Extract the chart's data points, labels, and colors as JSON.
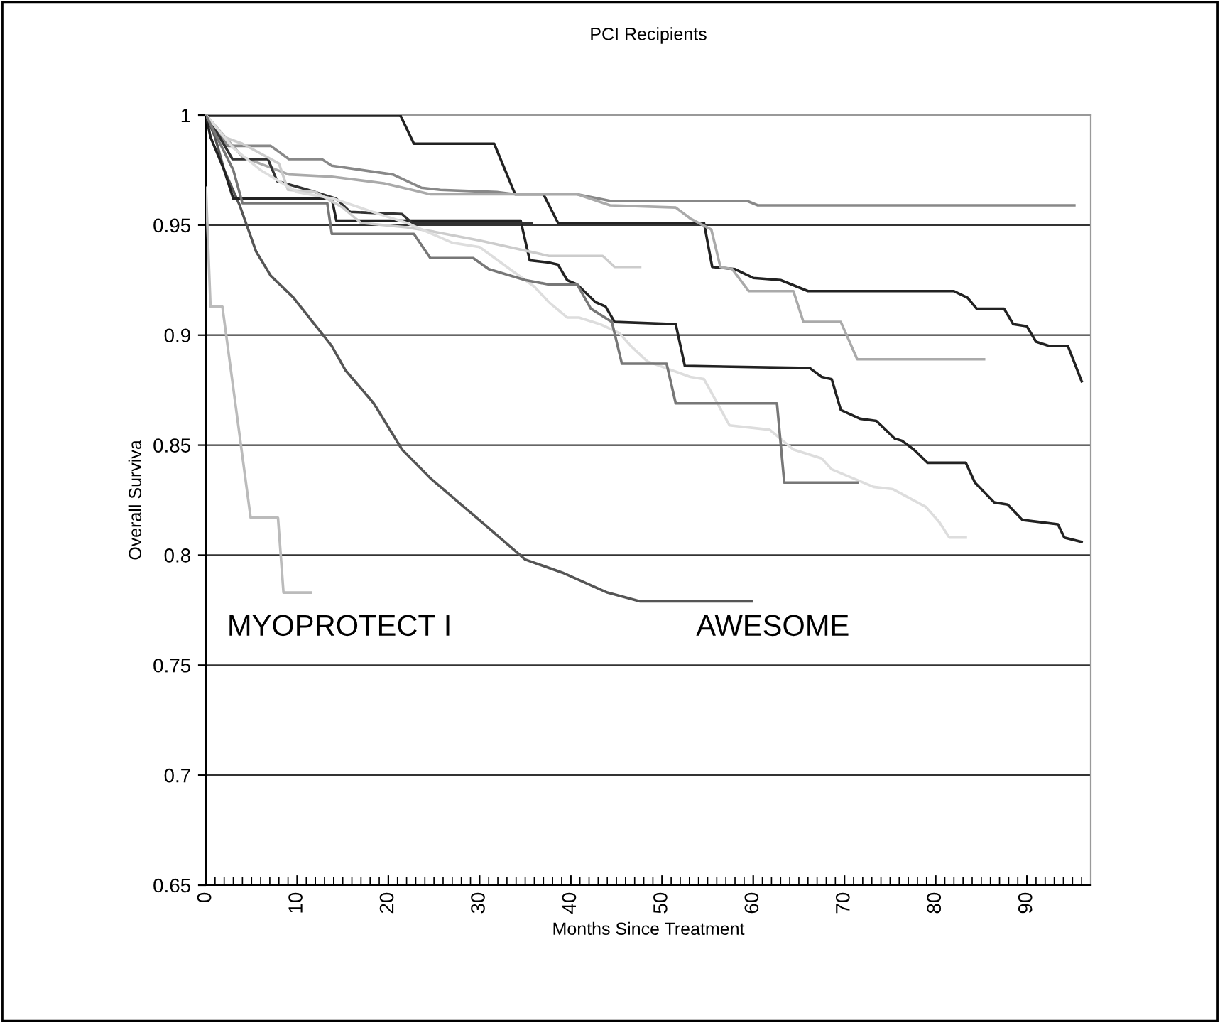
{
  "chart_data": {
    "type": "line",
    "title": "PCI Recipients",
    "xlabel": "Months Since Treatment",
    "ylabel": "Overall Surviva",
    "xlim": [
      0,
      97
    ],
    "xticks": [
      0,
      10,
      20,
      30,
      40,
      50,
      60,
      70,
      80,
      90
    ],
    "ylim": [
      0.65,
      1
    ],
    "yticks": [
      0.65,
      0.7,
      0.75,
      0.8,
      0.85,
      0.9,
      0.95,
      1
    ],
    "grid": "y",
    "marker": "none",
    "line_style": "solid",
    "annotations": [
      "MYOPROTECT I",
      "AWESOME"
    ],
    "series": [
      {
        "color": "#bbbbbb",
        "x": [
          0,
          0.5,
          1.8,
          4.9,
          7.9,
          8.5,
          11.5
        ],
        "values": [
          0.967,
          0.913,
          0.913,
          0.817,
          0.817,
          0.783,
          0.783
        ]
      },
      {
        "color": "#555555",
        "x": [
          0,
          1,
          2,
          3.7,
          5.5,
          7.1,
          9.6,
          11.7,
          13.8,
          15.3,
          18.4,
          21.5,
          24.6,
          27.7,
          30.8,
          35.0,
          39.1,
          44,
          47.6,
          59.8
        ],
        "values": [
          1,
          0.99,
          0.975,
          0.959,
          0.938,
          0.927,
          0.917,
          0.906,
          0.895,
          0.884,
          0.869,
          0.848,
          0.835,
          0.824,
          0.813,
          0.798,
          0.792,
          0.783,
          0.779,
          0.779
        ]
      },
      {
        "color": "#222222",
        "x": [
          0,
          21.3,
          22.8,
          31.6,
          33.9,
          37,
          38.6,
          54.6,
          55.5,
          58,
          60,
          63,
          66,
          82,
          83.5,
          84.5,
          87.5,
          88.5,
          90,
          91,
          92.5,
          94.5,
          96
        ],
        "values": [
          1,
          1,
          0.987,
          0.987,
          0.964,
          0.964,
          0.951,
          0.951,
          0.931,
          0.93,
          0.926,
          0.925,
          0.92,
          0.92,
          0.917,
          0.912,
          0.912,
          0.905,
          0.904,
          0.897,
          0.895,
          0.895,
          0.879
        ]
      },
      {
        "color": "#888888",
        "x": [
          0,
          2.4,
          7.1,
          9.1,
          12.7,
          13.8,
          20.5,
          23.6,
          25.7,
          31.9,
          33.9,
          40.7,
          44.3,
          59.3,
          60.5,
          95.2
        ],
        "values": [
          1,
          0.986,
          0.986,
          0.98,
          0.98,
          0.977,
          0.973,
          0.967,
          0.966,
          0.965,
          0.964,
          0.964,
          0.961,
          0.961,
          0.959,
          0.959
        ]
      },
      {
        "color": "#aaaaaa",
        "x": [
          0,
          4.0,
          9.1,
          13.8,
          19.5,
          22.6,
          24.6,
          31.9,
          40.7,
          44.3,
          51.5,
          53.1,
          55.4,
          56.4,
          57.7,
          59.5,
          64.4,
          65.5,
          69.6,
          71.4,
          85.3
        ],
        "values": [
          1,
          0.981,
          0.973,
          0.972,
          0.969,
          0.966,
          0.964,
          0.964,
          0.964,
          0.959,
          0.958,
          0.953,
          0.948,
          0.931,
          0.93,
          0.92,
          0.92,
          0.906,
          0.906,
          0.889,
          0.889
        ]
      },
      {
        "color": "#222222",
        "x": [
          0,
          0.5,
          2,
          3,
          13.8,
          14.3,
          34.5,
          35.5,
          37.6,
          38.6,
          39.6,
          40.7,
          42.7,
          43.8,
          44.8,
          51.5,
          52.5,
          66.2,
          67.5,
          68.6,
          69.6,
          71.7,
          73.5,
          75.5,
          76.3,
          77.6,
          79.1,
          83.3,
          84.3,
          86.4,
          87.9,
          89.5,
          93.4,
          94.1,
          96
        ],
        "values": [
          1,
          0.99,
          0.975,
          0.962,
          0.962,
          0.952,
          0.952,
          0.934,
          0.933,
          0.932,
          0.925,
          0.923,
          0.915,
          0.913,
          0.906,
          0.905,
          0.886,
          0.885,
          0.881,
          0.88,
          0.866,
          0.862,
          0.861,
          0.853,
          0.852,
          0.848,
          0.842,
          0.842,
          0.833,
          0.824,
          0.823,
          0.816,
          0.814,
          0.808,
          0.806
        ]
      },
      {
        "color": "#333333",
        "x": [
          0,
          1.5,
          2.9,
          6.8,
          7.8,
          11.2,
          14.3,
          15.8,
          21.5,
          22.6,
          35.7
        ],
        "values": [
          1,
          0.99,
          0.98,
          0.98,
          0.97,
          0.966,
          0.962,
          0.956,
          0.955,
          0.951,
          0.951
        ]
      },
      {
        "color": "#cccccc",
        "x": [
          0,
          2,
          4,
          8,
          9,
          12,
          15,
          17,
          22,
          25,
          30,
          37.6,
          43.5,
          44.8,
          47.6
        ],
        "values": [
          1,
          0.99,
          0.987,
          0.978,
          0.966,
          0.965,
          0.958,
          0.951,
          0.949,
          0.947,
          0.943,
          0.936,
          0.936,
          0.931,
          0.931
        ]
      },
      {
        "color": "#dddddd",
        "x": [
          0,
          3,
          6,
          10,
          14,
          19,
          22,
          27,
          30,
          33,
          36,
          37.6,
          39.6,
          40.9,
          43.2,
          45.3,
          46.6,
          48.4,
          53.1,
          54.6,
          57.4,
          61.8,
          64.4,
          67.5,
          68.6,
          73.2,
          75.3,
          78.9,
          80.4,
          81.5,
          83.3
        ],
        "values": [
          1,
          0.985,
          0.975,
          0.965,
          0.962,
          0.955,
          0.951,
          0.942,
          0.94,
          0.931,
          0.922,
          0.915,
          0.908,
          0.908,
          0.905,
          0.901,
          0.895,
          0.888,
          0.881,
          0.88,
          0.859,
          0.857,
          0.848,
          0.844,
          0.839,
          0.831,
          0.83,
          0.822,
          0.815,
          0.808,
          0.808
        ]
      },
      {
        "color": "#777777",
        "x": [
          0,
          3,
          4,
          13.3,
          13.8,
          22.8,
          24.6,
          29.3,
          31,
          35,
          37.6,
          40.7,
          42.2,
          44.5,
          45.6,
          50.5,
          51.5,
          62.6,
          63.4,
          71.4
        ],
        "values": [
          1,
          0.975,
          0.96,
          0.96,
          0.946,
          0.946,
          0.935,
          0.935,
          0.93,
          0.925,
          0.923,
          0.923,
          0.912,
          0.906,
          0.887,
          0.887,
          0.869,
          0.869,
          0.833,
          0.833
        ]
      }
    ]
  }
}
